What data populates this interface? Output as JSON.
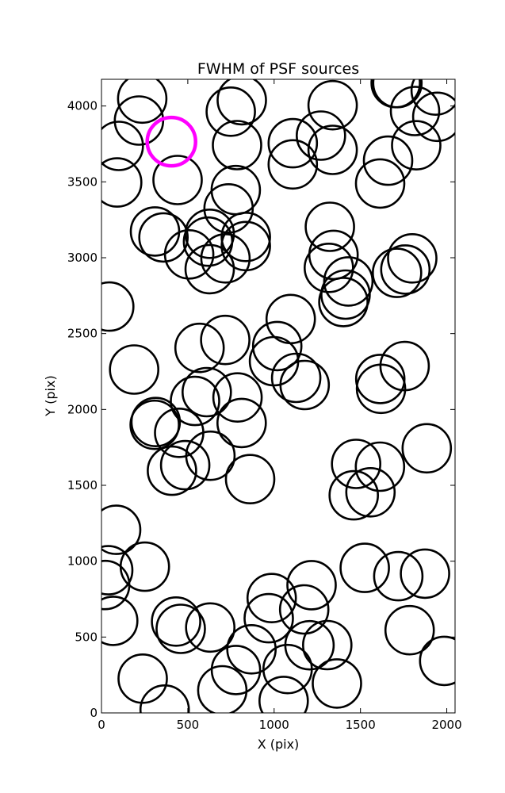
{
  "chart_data": {
    "type": "scatter",
    "title": "FWHM of PSF sources",
    "xlabel": "X (pix)",
    "ylabel": "Y (pix)",
    "xlim": [
      0,
      2048
    ],
    "ylim": [
      0,
      4176
    ],
    "xticks": [
      0,
      500,
      1000,
      1500,
      2000
    ],
    "yticks": [
      0,
      500,
      1000,
      1500,
      2000,
      2500,
      3000,
      3500,
      4000
    ],
    "grid": false,
    "legend": "none",
    "marker": "open-circle",
    "circle_radius_pix": 140,
    "colors": {
      "normal": "#000000",
      "highlight": "#ff00ff"
    },
    "highlight_index": 0,
    "points": [
      [
        405,
        3765
      ],
      [
        236,
        4049
      ],
      [
        217,
        3904
      ],
      [
        100,
        3737
      ],
      [
        91,
        3496
      ],
      [
        441,
        3512
      ],
      [
        749,
        3963
      ],
      [
        813,
        4038
      ],
      [
        785,
        3742
      ],
      [
        778,
        3446
      ],
      [
        736,
        3325
      ],
      [
        310,
        3173
      ],
      [
        359,
        3134
      ],
      [
        627,
        3158
      ],
      [
        617,
        3106
      ],
      [
        508,
        3022
      ],
      [
        627,
        2925
      ],
      [
        718,
        2996
      ],
      [
        836,
        3137
      ],
      [
        836,
        3077
      ],
      [
        1108,
        3755
      ],
      [
        1108,
        3615
      ],
      [
        1271,
        3805
      ],
      [
        1339,
        3711
      ],
      [
        1339,
        4005
      ],
      [
        1614,
        3489
      ],
      [
        1660,
        3640
      ],
      [
        1704,
        4151
      ],
      [
        1714,
        4151
      ],
      [
        1816,
        3967
      ],
      [
        1823,
        3741
      ],
      [
        1936,
        4102
      ],
      [
        1945,
        3929
      ],
      [
        1323,
        3204
      ],
      [
        1344,
        3019
      ],
      [
        1317,
        2933
      ],
      [
        1430,
        2844
      ],
      [
        1414,
        2757
      ],
      [
        1401,
        2708
      ],
      [
        1800,
        2996
      ],
      [
        1760,
        2922
      ],
      [
        1712,
        2900
      ],
      [
        45,
        2678
      ],
      [
        1096,
        2596
      ],
      [
        1018,
        2418
      ],
      [
        999,
        2318
      ],
      [
        1128,
        2208
      ],
      [
        1177,
        2161
      ],
      [
        717,
        2458
      ],
      [
        568,
        2406
      ],
      [
        189,
        2263
      ],
      [
        610,
        2114
      ],
      [
        542,
        2056
      ],
      [
        788,
        2079
      ],
      [
        812,
        1911
      ],
      [
        314,
        1917
      ],
      [
        308,
        1899
      ],
      [
        450,
        1846
      ],
      [
        631,
        1695
      ],
      [
        485,
        1633
      ],
      [
        408,
        1596
      ],
      [
        861,
        1541
      ],
      [
        1475,
        1641
      ],
      [
        1613,
        1623
      ],
      [
        1615,
        2201
      ],
      [
        1619,
        2136
      ],
      [
        1756,
        2286
      ],
      [
        1461,
        1434
      ],
      [
        1558,
        1454
      ],
      [
        1884,
        1744
      ],
      [
        85,
        1207
      ],
      [
        39,
        940
      ],
      [
        21,
        843
      ],
      [
        68,
        607
      ],
      [
        251,
        964
      ],
      [
        432,
        602
      ],
      [
        459,
        554
      ],
      [
        630,
        563
      ],
      [
        239,
        226
      ],
      [
        366,
        22
      ],
      [
        700,
        149
      ],
      [
        779,
        283
      ],
      [
        869,
        419
      ],
      [
        969,
        624
      ],
      [
        986,
        757
      ],
      [
        1055,
        79
      ],
      [
        1078,
        289
      ],
      [
        1174,
        682
      ],
      [
        1217,
        842
      ],
      [
        1205,
        446
      ],
      [
        1308,
        447
      ],
      [
        1364,
        194
      ],
      [
        1525,
        956
      ],
      [
        1719,
        901
      ],
      [
        1874,
        918
      ],
      [
        1785,
        545
      ],
      [
        1985,
        343
      ]
    ]
  }
}
